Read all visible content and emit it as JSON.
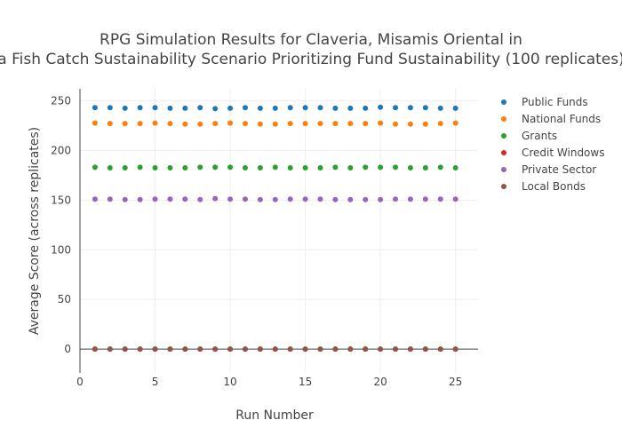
{
  "chart_data": {
    "type": "scatter",
    "title_line1": "RPG Simulation Results for Claveria, Misamis Oriental in",
    "title_line2": "a Fish Catch Sustainability Scenario Prioritizing Fund Sustainability (100 replicates)",
    "xlabel": "Run Number",
    "ylabel": "Average Score (across replicates)",
    "xlim": [
      0,
      26.5
    ],
    "ylim": [
      -24,
      262
    ],
    "x_ticks": [
      0,
      5,
      10,
      15,
      20,
      25
    ],
    "y_ticks": [
      0,
      50,
      100,
      150,
      200,
      250
    ],
    "grid": true,
    "legend_position": "top-right",
    "x": [
      1,
      2,
      3,
      4,
      5,
      6,
      7,
      8,
      9,
      10,
      11,
      12,
      13,
      14,
      15,
      16,
      17,
      18,
      19,
      20,
      21,
      22,
      23,
      24,
      25
    ],
    "series": [
      {
        "name": "Public Funds",
        "color": "#1f77b4",
        "values": [
          243,
          243,
          242.5,
          243,
          243,
          242.5,
          242.5,
          243,
          242,
          242.5,
          243,
          242.5,
          242.5,
          243,
          243,
          243,
          242.5,
          242.5,
          242.5,
          243.5,
          243,
          243,
          243,
          242.5,
          242.5
        ]
      },
      {
        "name": "National Funds",
        "color": "#ff7f0e",
        "values": [
          227.5,
          227,
          227,
          227,
          227.5,
          227,
          226.5,
          226.5,
          227,
          227.5,
          227,
          226.5,
          226.5,
          227,
          227,
          227,
          227,
          227,
          227,
          227.5,
          226.5,
          226.5,
          226.5,
          227,
          227.5
        ]
      },
      {
        "name": "Grants",
        "color": "#2ca02c",
        "values": [
          183,
          182.5,
          182.5,
          183,
          182.5,
          182.5,
          182.5,
          183,
          183,
          183,
          182.5,
          182.5,
          183,
          182.5,
          182.5,
          182.5,
          183,
          182.5,
          183,
          183,
          183,
          182.5,
          182.5,
          183,
          182.5
        ]
      },
      {
        "name": "Credit Windows",
        "color": "#d62728",
        "values": [
          0,
          0,
          0,
          0,
          0,
          0,
          0,
          0,
          0,
          0,
          0,
          0,
          0,
          0,
          0,
          0,
          0,
          0,
          0,
          0,
          0,
          0,
          0,
          0,
          0
        ]
      },
      {
        "name": "Private Sector",
        "color": "#9467bd",
        "values": [
          151,
          151,
          150.5,
          150.5,
          151,
          151,
          151,
          150.5,
          151.5,
          151,
          151,
          150.5,
          150.5,
          151,
          151,
          151,
          150.5,
          150.5,
          150.5,
          150.5,
          151,
          151,
          151,
          151,
          151
        ]
      },
      {
        "name": "Local Bonds",
        "color": "#8c564b",
        "values": [
          0,
          0,
          0,
          0,
          0,
          0,
          0,
          0,
          0,
          0,
          0,
          0,
          0,
          0,
          0,
          0,
          0,
          0,
          0,
          0,
          0,
          0,
          0,
          0,
          0
        ]
      }
    ]
  }
}
